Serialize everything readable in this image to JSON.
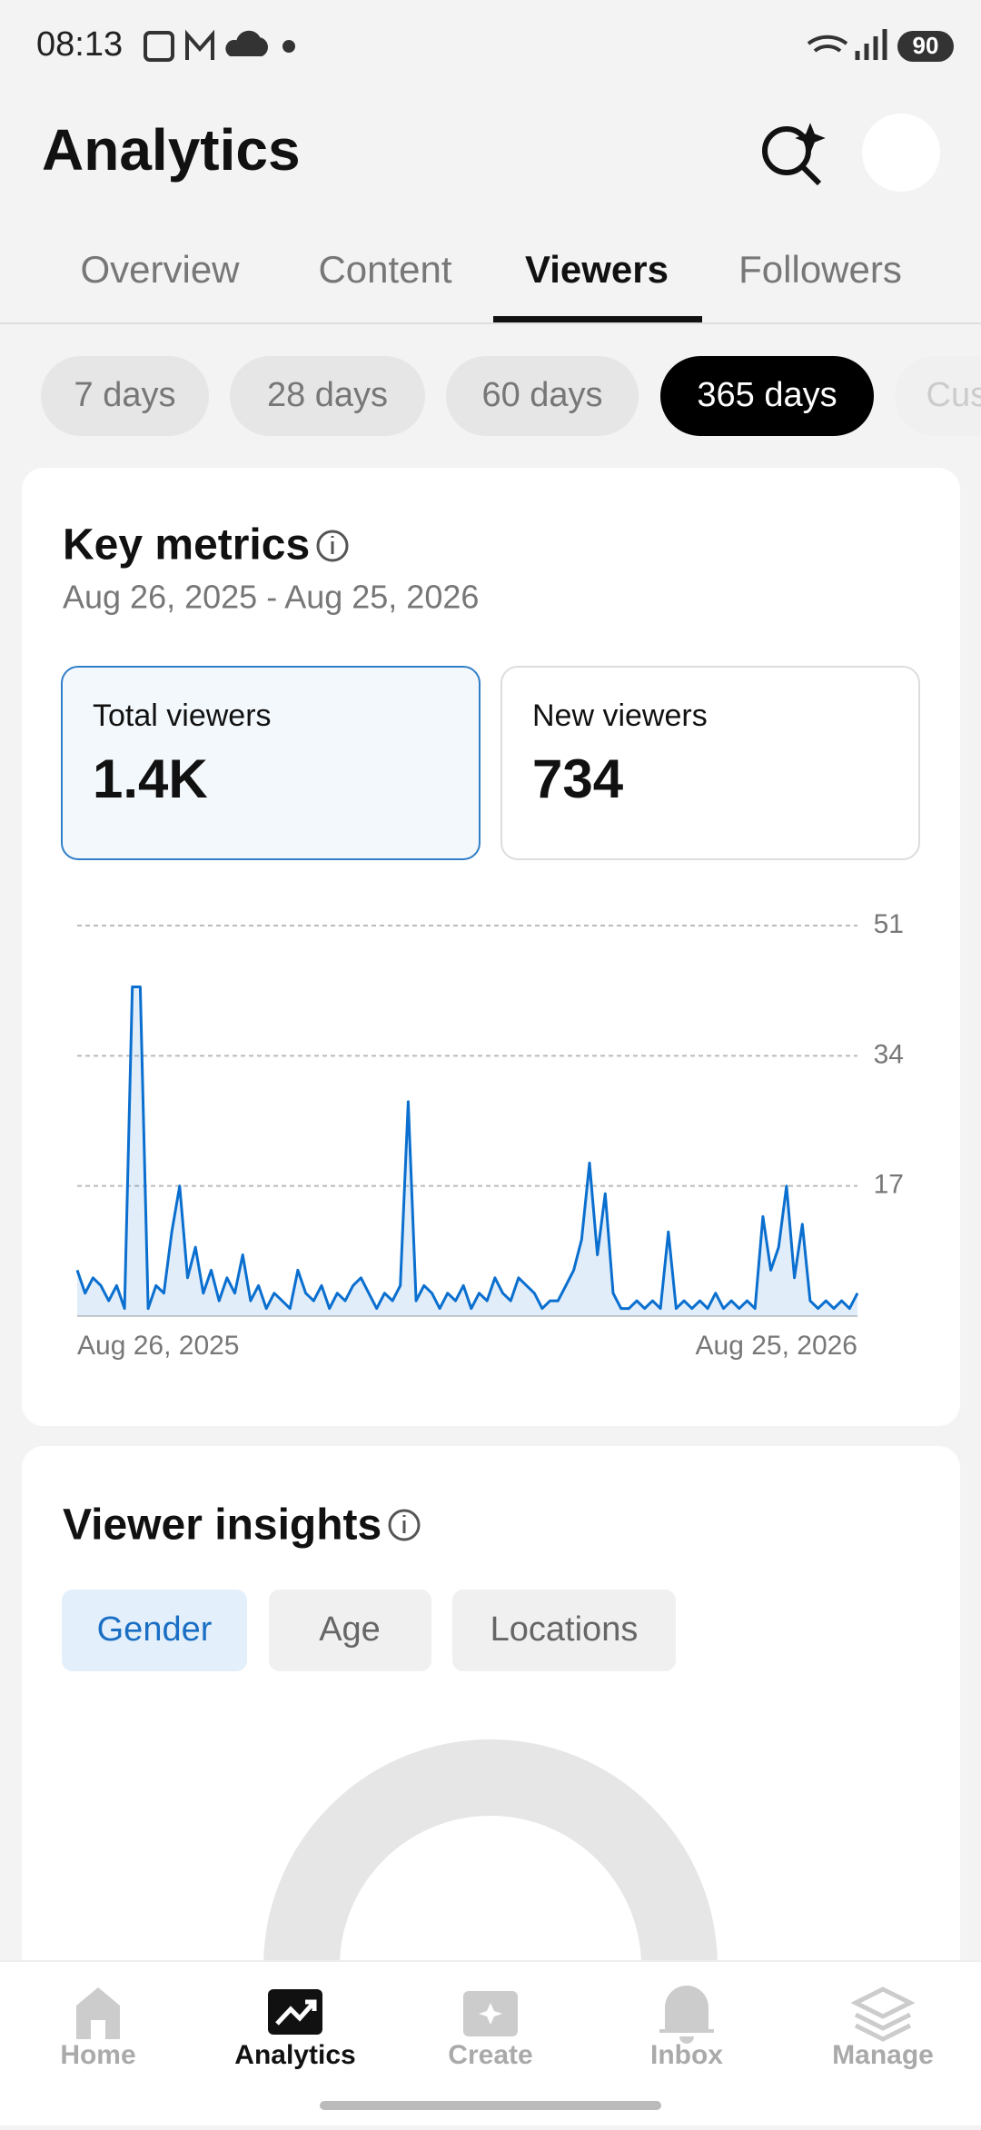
{
  "status_bar": {
    "time": "08:13",
    "battery": "90"
  },
  "header": {
    "title": "Analytics"
  },
  "tabs": [
    "Overview",
    "Content",
    "Viewers",
    "Followers"
  ],
  "ranges": [
    "7 days",
    "28 days",
    "60 days",
    "365 days",
    "Custom"
  ],
  "key_metrics": {
    "title": "Key metrics",
    "date_range": "Aug 26, 2025 - Aug 25, 2026",
    "cards": [
      {
        "label": "Total viewers",
        "value": "1.4K"
      },
      {
        "label": "New viewers",
        "value": "734"
      }
    ]
  },
  "chart_data": {
    "type": "line",
    "color": "#0a6fcf",
    "grid": true,
    "ylim": [
      0,
      51
    ],
    "yticks": [
      17,
      34,
      51
    ],
    "categories": [
      "Aug 26, 2025",
      null,
      null,
      null,
      null,
      null,
      null,
      null,
      null,
      null,
      null,
      null,
      null,
      null,
      null,
      null,
      null,
      null,
      null,
      null,
      null,
      null,
      null,
      null,
      null,
      null,
      null,
      null,
      null,
      null,
      null,
      null,
      null,
      null,
      null,
      null,
      null,
      null,
      null,
      null,
      null,
      null,
      null,
      null,
      null,
      null,
      null,
      null,
      null,
      null,
      null,
      null,
      null,
      null,
      null,
      null,
      null,
      null,
      null,
      null,
      null,
      null,
      null,
      null,
      null,
      null,
      null,
      null,
      null,
      null,
      null,
      null,
      null,
      null,
      null,
      null,
      null,
      null,
      null,
      null,
      null,
      null,
      null,
      null,
      null,
      null,
      null,
      null,
      null,
      null,
      null,
      null,
      null,
      null,
      null,
      null,
      null,
      null,
      null,
      "Aug 25, 2026"
    ],
    "values": [
      6,
      3,
      5,
      4,
      2,
      4,
      1,
      43,
      43,
      1,
      4,
      3,
      11,
      17,
      5,
      9,
      3,
      6,
      2,
      5,
      3,
      8,
      2,
      4,
      1,
      3,
      2,
      1,
      6,
      3,
      2,
      4,
      1,
      3,
      2,
      4,
      5,
      3,
      1,
      3,
      2,
      4,
      28,
      2,
      4,
      3,
      1,
      3,
      2,
      4,
      1,
      3,
      2,
      5,
      3,
      2,
      5,
      4,
      3,
      1,
      2,
      2,
      4,
      6,
      10,
      20,
      8,
      16,
      3,
      1,
      1,
      2,
      1,
      2,
      1,
      11,
      1,
      2,
      1,
      2,
      1,
      3,
      1,
      2,
      1,
      2,
      1,
      13,
      6,
      9,
      17,
      5,
      12,
      2,
      1,
      2,
      1,
      2,
      1,
      3
    ]
  },
  "viewer_insights": {
    "title": "Viewer insights",
    "tabs": [
      "Gender",
      "Age",
      "Locations"
    ]
  },
  "nav": [
    "Home",
    "Analytics",
    "Create",
    "Inbox",
    "Manage"
  ]
}
